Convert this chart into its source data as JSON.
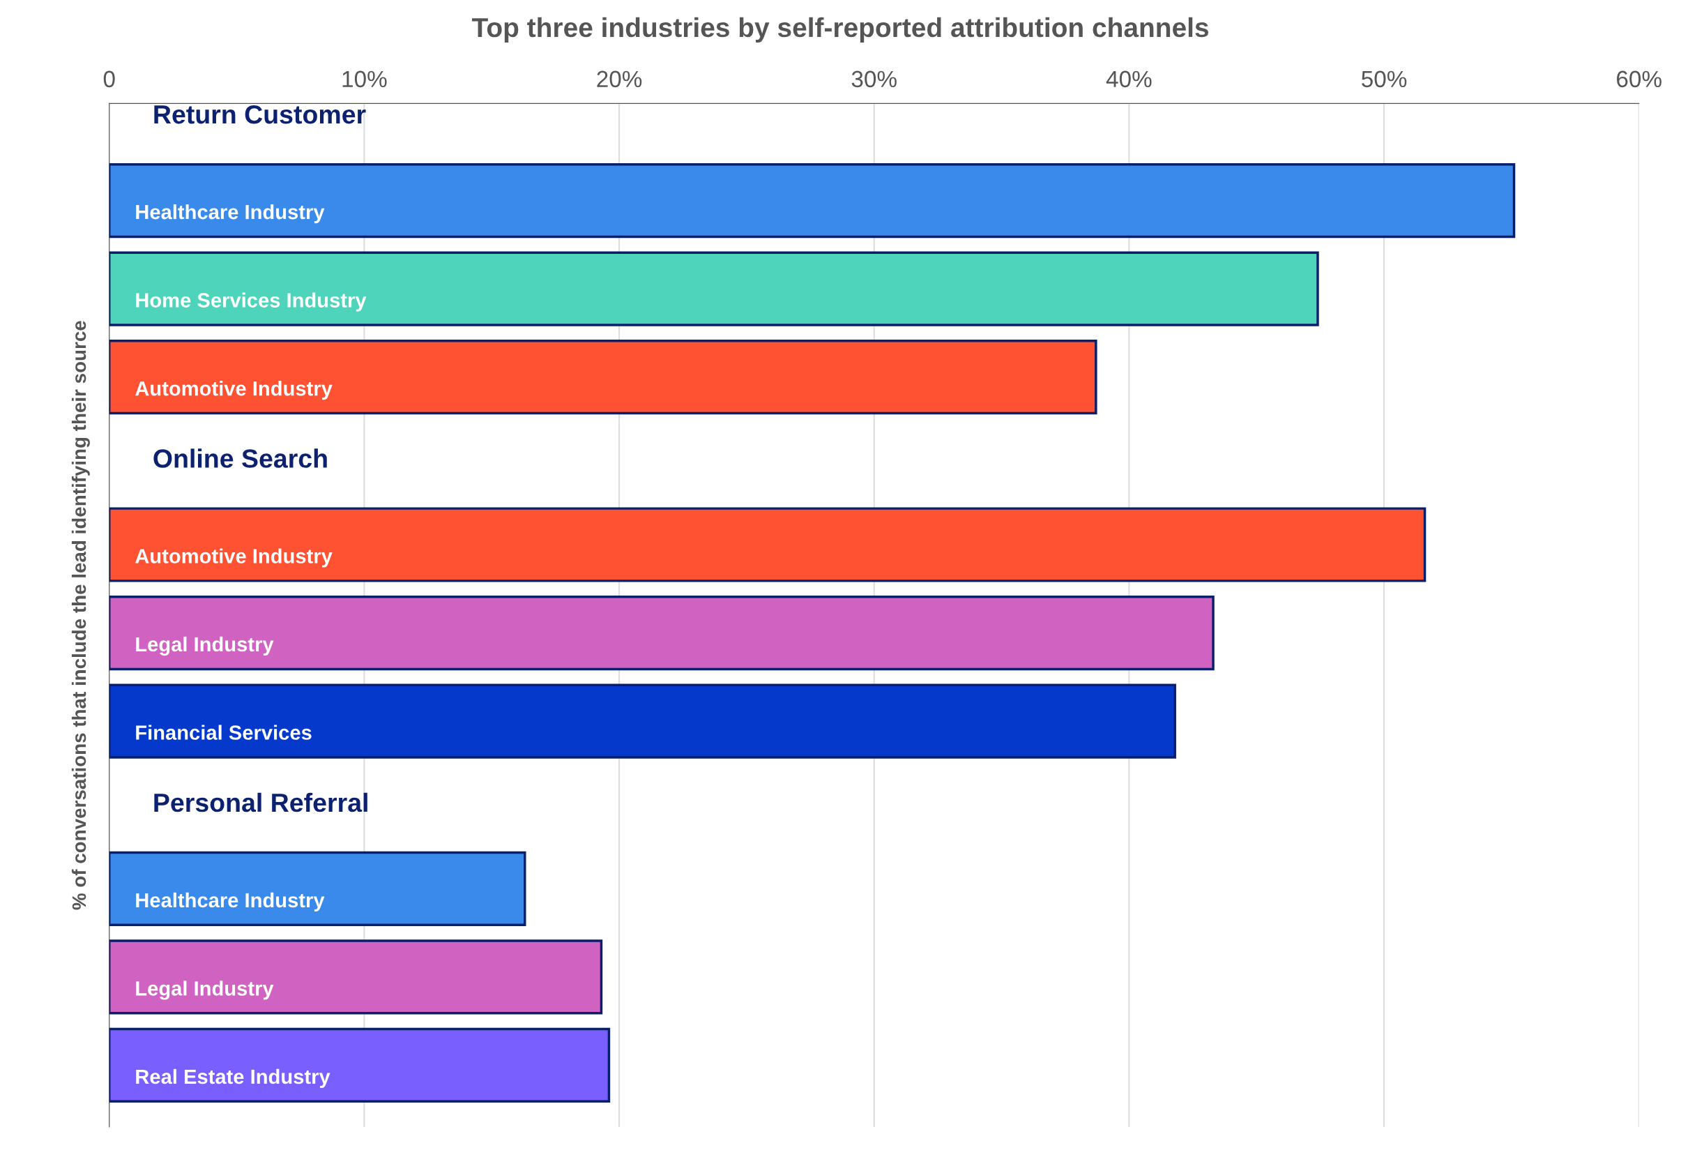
{
  "chart_data": {
    "type": "bar",
    "orientation": "horizontal",
    "title": "Top three industries by self-reported attribution channels",
    "ylabel": "% of conversations that include the lead identifying their source",
    "categories": [
      "Healthcare Industry",
      "Home Services Industry",
      "Automotive Industry",
      "Automotive Industry",
      "Legal Industry",
      "Financial Services",
      "Healthcare Industry",
      "Legal Industry",
      "Real Estate Industry"
    ],
    "values": [
      55.1,
      47.4,
      38.7,
      51.6,
      43.3,
      41.8,
      16.3,
      19.3,
      19.6
    ],
    "colors": [
      "#3a8aec",
      "#4fd4bc",
      "#ff5233",
      "#ff5233",
      "#d062c2",
      "#0539cc",
      "#3a8aec",
      "#d062c2",
      "#7a5fff"
    ],
    "annotations": [
      "Return Customer",
      "Online Search",
      "Personal Referral"
    ],
    "xlim": [
      0,
      60
    ],
    "xticks": [
      0,
      {
        "value": 10,
        "label": "10%"
      },
      {
        "value": 20,
        "label": "20%"
      },
      {
        "value": 30,
        "label": "30%"
      },
      {
        "value": 40,
        "label": "40%"
      },
      {
        "value": 50,
        "label": "50%"
      },
      {
        "value": 60,
        "label": "60%"
      }
    ],
    "grid": "x",
    "legend": false
  }
}
